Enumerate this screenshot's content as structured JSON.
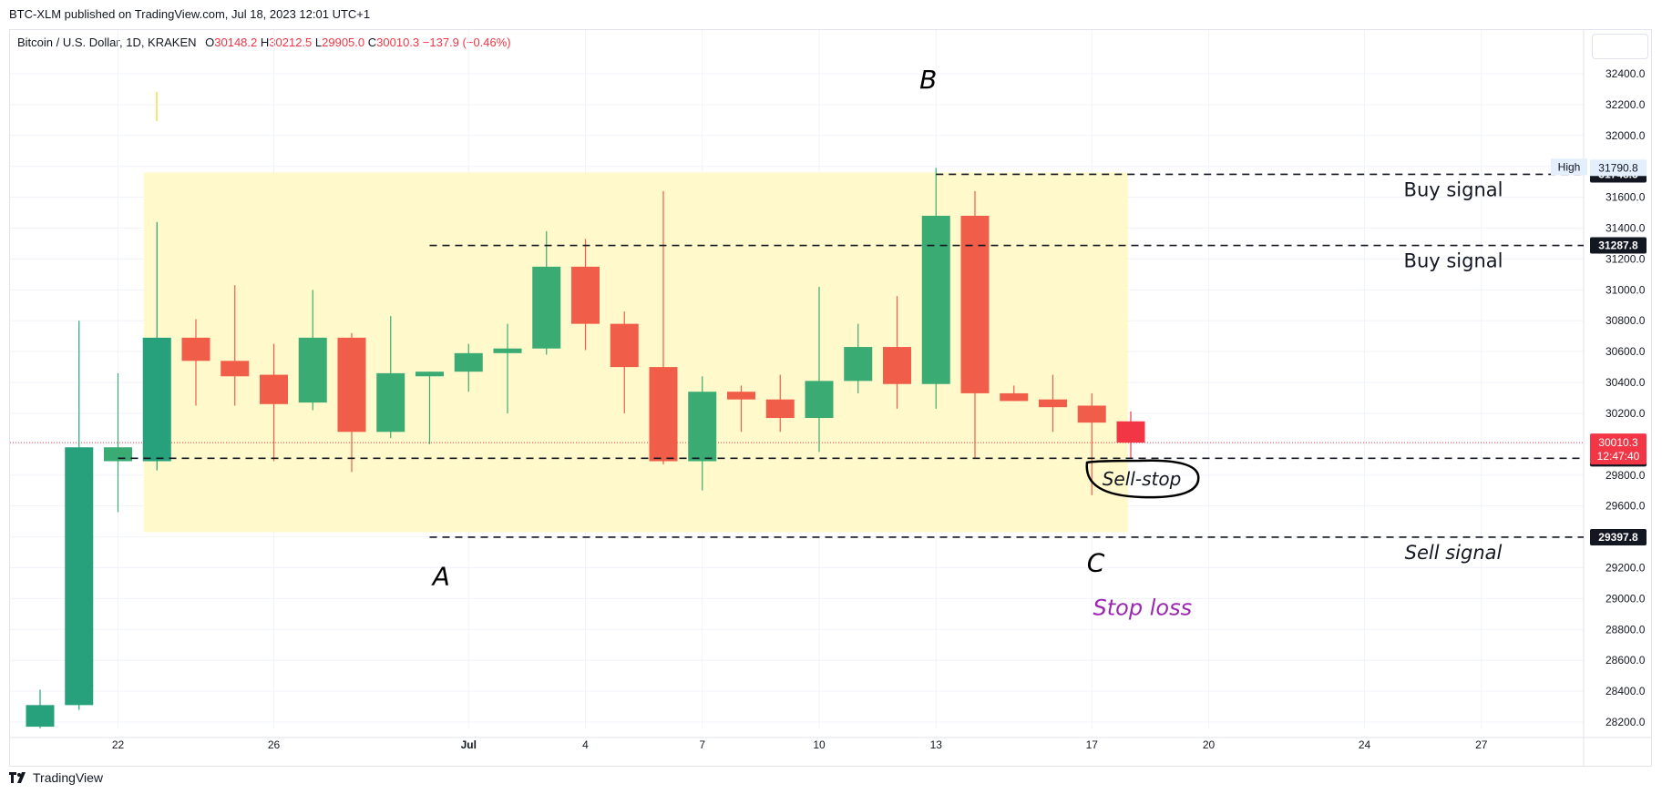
{
  "caption": "BTC-XLM published on TradingView.com, Jul 18, 2023 12:01 UTC+1",
  "legend": {
    "symbol": "Bitcoin / U.S. Dollar, 1D, KRAKEN",
    "open_label": "O",
    "open": "30148.2",
    "high_label": "H",
    "high": "30212.5",
    "low_label": "L",
    "low": "29905.0",
    "close_label": "C",
    "close": "30010.3",
    "change": "−137.9 (−0.46%)"
  },
  "brand": "TradingView",
  "colors": {
    "up": "#26a17b",
    "up_body": "#3aab72",
    "down": "#f05d48",
    "last": "#f23645",
    "zone": "#fff9cc",
    "annotation_purple": "#9c27b0"
  },
  "chart_data": {
    "type": "candlestick",
    "ylim": [
      28050,
      32600
    ],
    "yticks": [
      28200,
      28400,
      28600,
      28800,
      29000,
      29200,
      29400,
      29600,
      29800,
      30000,
      30200,
      30400,
      30600,
      30800,
      31000,
      31200,
      31400,
      31600,
      31800,
      32000,
      32200,
      32400
    ],
    "ytick_labels": [
      "28200.0",
      "28400.0",
      "28600.0",
      "28800.0",
      "29000.0",
      "29200.0",
      "29400.0",
      "29600.0",
      "29800.0",
      "30000.0",
      "30200.0",
      "30400.0",
      "30600.0",
      "30800.0",
      "31000.0",
      "31200.0",
      "31400.0",
      "31600.0",
      "31800.0",
      "32000.0",
      "32200.0",
      "32400.0"
    ],
    "xtick_labels": [
      {
        "label": "22",
        "day": 22
      },
      {
        "label": "26",
        "day": 26
      },
      {
        "label": "Jul",
        "day": 31,
        "bold": true
      },
      {
        "label": "4",
        "day": 34
      },
      {
        "label": "7",
        "day": 37
      },
      {
        "label": "10",
        "day": 40
      },
      {
        "label": "13",
        "day": 43
      },
      {
        "label": "17",
        "day": 47
      },
      {
        "label": "20",
        "day": 50
      },
      {
        "label": "24",
        "day": 54
      },
      {
        "label": "27",
        "day": 57
      }
    ],
    "candles": [
      {
        "day": 20,
        "o": 28170,
        "h": 28410,
        "l": 28160,
        "c": 28310
      },
      {
        "day": 21,
        "o": 28310,
        "h": 30800,
        "l": 28280,
        "c": 29980
      },
      {
        "day": 22,
        "o": 29890,
        "h": 30460,
        "l": 29560,
        "c": 29980
      },
      {
        "day": 23,
        "o": 29890,
        "h": 31440,
        "l": 29830,
        "c": 30690
      },
      {
        "day": 24,
        "o": 30690,
        "h": 30810,
        "l": 30250,
        "c": 30540
      },
      {
        "day": 25,
        "o": 30540,
        "h": 31030,
        "l": 30250,
        "c": 30440
      },
      {
        "day": 26,
        "o": 30450,
        "h": 30650,
        "l": 29890,
        "c": 30260
      },
      {
        "day": 27,
        "o": 30270,
        "h": 31000,
        "l": 30220,
        "c": 30690
      },
      {
        "day": 28,
        "o": 30690,
        "h": 30720,
        "l": 29820,
        "c": 30080
      },
      {
        "day": 29,
        "o": 30080,
        "h": 30830,
        "l": 30040,
        "c": 30460
      },
      {
        "day": 30,
        "o": 30440,
        "h": 30470,
        "l": 30000,
        "c": 30470
      },
      {
        "day": 31,
        "o": 30470,
        "h": 30650,
        "l": 30340,
        "c": 30590
      },
      {
        "day": 32,
        "o": 30590,
        "h": 30780,
        "l": 30200,
        "c": 30620
      },
      {
        "day": 33,
        "o": 30620,
        "h": 31380,
        "l": 30580,
        "c": 31150
      },
      {
        "day": 34,
        "o": 31150,
        "h": 31330,
        "l": 30610,
        "c": 30780
      },
      {
        "day": 35,
        "o": 30780,
        "h": 30860,
        "l": 30200,
        "c": 30500
      },
      {
        "day": 36,
        "o": 30500,
        "h": 31640,
        "l": 29870,
        "c": 29890
      },
      {
        "day": 37,
        "o": 29890,
        "h": 30440,
        "l": 29700,
        "c": 30340
      },
      {
        "day": 38,
        "o": 30340,
        "h": 30380,
        "l": 30080,
        "c": 30290
      },
      {
        "day": 39,
        "o": 30290,
        "h": 30450,
        "l": 30080,
        "c": 30170
      },
      {
        "day": 40,
        "o": 30170,
        "h": 31020,
        "l": 29950,
        "c": 30410
      },
      {
        "day": 41,
        "o": 30410,
        "h": 30780,
        "l": 30330,
        "c": 30630
      },
      {
        "day": 42,
        "o": 30630,
        "h": 30960,
        "l": 30230,
        "c": 30390
      },
      {
        "day": 43,
        "o": 30390,
        "h": 31790,
        "l": 30230,
        "c": 31480
      },
      {
        "day": 44,
        "o": 31480,
        "h": 31640,
        "l": 29910,
        "c": 30330
      },
      {
        "day": 45,
        "o": 30330,
        "h": 30380,
        "l": 30280,
        "c": 30280
      },
      {
        "day": 46,
        "o": 30290,
        "h": 30450,
        "l": 30080,
        "c": 30240
      },
      {
        "day": 47,
        "o": 30250,
        "h": 30330,
        "l": 29670,
        "c": 30140
      },
      {
        "day": 48,
        "o": 30148.2,
        "h": 30212.5,
        "l": 29905.0,
        "c": 30010.3
      }
    ],
    "zone": {
      "from_day": 23,
      "to_day": 48,
      "from_price": 29430,
      "to_price": 31760
    },
    "levels": [
      {
        "price": 31748.3,
        "label": "31748.3",
        "text": "Buy signal",
        "from_day": 43
      },
      {
        "price": 31287.8,
        "label": "31287.8",
        "text": "Buy signal",
        "from_day": 30
      },
      {
        "price": 29908.7,
        "label": "29908.7",
        "text": "",
        "from_day": 22
      },
      {
        "price": 29397.8,
        "label": "29397.8",
        "text": "Sell signal",
        "from_day": 30
      }
    ],
    "high_marker": {
      "label": "High",
      "value": "31790.8",
      "price": 31790.8
    },
    "last_price": {
      "value": "30010.3",
      "countdown": "12:47:40",
      "price": 30010.3
    },
    "annotations": [
      {
        "text": "B",
        "day": 42.8,
        "price": 32360
      },
      {
        "text": "A",
        "day": 30.3,
        "price": 29140
      },
      {
        "text": "C",
        "day": 47.1,
        "price": 29230
      },
      {
        "text": "Sell-stop",
        "day": 48.0,
        "price": 29775,
        "circled": true
      },
      {
        "text": "Stop loss",
        "day": 48.3,
        "price": 28940,
        "purple": true
      }
    ]
  }
}
